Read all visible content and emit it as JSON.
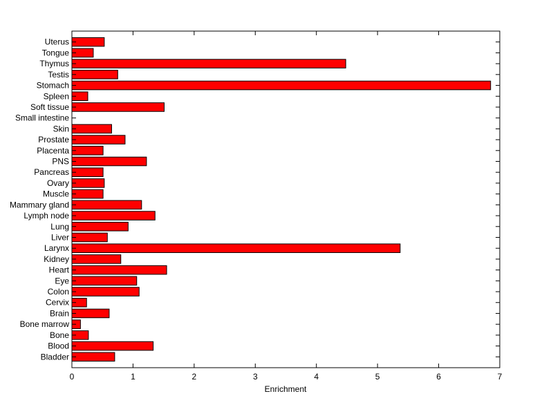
{
  "chart_data": {
    "type": "bar",
    "orientation": "horizontal",
    "title": "",
    "xlabel": "Enrichment",
    "ylabel": "",
    "xlim": [
      0,
      7
    ],
    "xticks": [
      0,
      1,
      2,
      3,
      4,
      5,
      6,
      7
    ],
    "grid": false,
    "bar_color": "#ff0000",
    "categories": [
      "Bladder",
      "Blood",
      "Bone",
      "Bone marrow",
      "Brain",
      "Cervix",
      "Colon",
      "Eye",
      "Heart",
      "Kidney",
      "Larynx",
      "Liver",
      "Lung",
      "Lymph node",
      "Mammary gland",
      "Muscle",
      "Ovary",
      "Pancreas",
      "PNS",
      "Placenta",
      "Prostate",
      "Skin",
      "Small intestine",
      "Soft tissue",
      "Spleen",
      "Stomach",
      "Testis",
      "Thymus",
      "Tongue",
      "Uterus"
    ],
    "values": [
      0.7,
      1.33,
      0.27,
      0.14,
      0.61,
      0.24,
      1.1,
      1.06,
      1.55,
      0.8,
      5.37,
      0.58,
      0.92,
      1.36,
      1.14,
      0.51,
      0.53,
      0.51,
      1.22,
      0.51,
      0.87,
      0.65,
      0.0,
      1.51,
      0.26,
      6.85,
      0.75,
      4.48,
      0.35,
      0.53
    ]
  }
}
